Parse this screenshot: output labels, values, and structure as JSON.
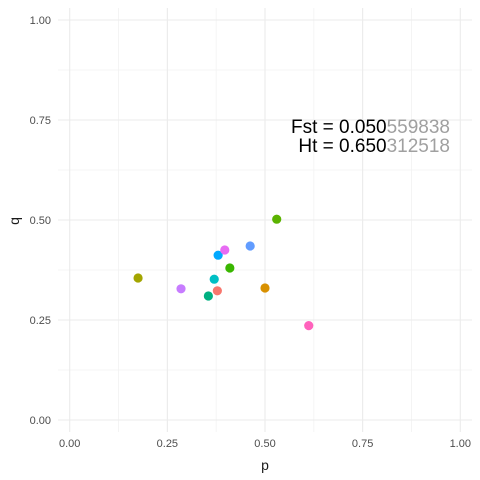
{
  "chart_data": {
    "type": "scatter",
    "title": "",
    "xlabel": "p",
    "ylabel": "q",
    "xlim": [
      -0.03,
      1.03
    ],
    "ylim": [
      -0.03,
      1.03
    ],
    "x_ticks": [
      0.0,
      0.25,
      0.5,
      0.75,
      1.0
    ],
    "x_tick_labels": [
      "0.00",
      "0.25",
      "0.50",
      "0.75",
      "1.00"
    ],
    "y_ticks": [
      0.0,
      0.25,
      0.5,
      0.75,
      1.0
    ],
    "y_tick_labels": [
      "0.00",
      "0.25",
      "0.50",
      "0.75",
      "1.00"
    ],
    "grid": true,
    "legend": "none",
    "points": [
      {
        "x": 0.175,
        "y": 0.355,
        "color": "#a3a500"
      },
      {
        "x": 0.285,
        "y": 0.328,
        "color": "#c77cff"
      },
      {
        "x": 0.355,
        "y": 0.31,
        "color": "#00b081"
      },
      {
        "x": 0.37,
        "y": 0.352,
        "color": "#00bfc4"
      },
      {
        "x": 0.378,
        "y": 0.323,
        "color": "#f8766d"
      },
      {
        "x": 0.38,
        "y": 0.412,
        "color": "#00a9ff"
      },
      {
        "x": 0.397,
        "y": 0.425,
        "color": "#e76bf3"
      },
      {
        "x": 0.41,
        "y": 0.38,
        "color": "#39b600"
      },
      {
        "x": 0.462,
        "y": 0.435,
        "color": "#619cff"
      },
      {
        "x": 0.5,
        "y": 0.33,
        "color": "#d89000"
      },
      {
        "x": 0.53,
        "y": 0.502,
        "color": "#5bb300"
      },
      {
        "x": 0.612,
        "y": 0.236,
        "color": "#ff62bc"
      }
    ],
    "annotations": [
      {
        "label": "Fst = ",
        "value_bold": "0.050",
        "value_faded": "559838"
      },
      {
        "label": "Ht = ",
        "value_bold": "0.650",
        "value_faded": "312518"
      }
    ],
    "annotation_colors": {
      "primary": "#000000",
      "faded": "#a0a0a0"
    }
  }
}
